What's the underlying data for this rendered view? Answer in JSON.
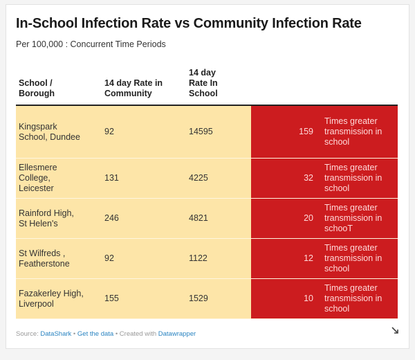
{
  "chart_data": {
    "type": "table",
    "title": "In-School Infection Rate vs Community Infection Rate",
    "subtitle": "Per 100,000 : Concurrent Time Periods",
    "columns": [
      "School /\nBorough",
      "14 day Rate in\nCommunity",
      "14 day\nRate In\nSchool",
      "",
      ""
    ],
    "rows": [
      {
        "school": "Kingspark\nSchool, Dundee",
        "community": 92,
        "school_rate": 14595,
        "ratio": 159,
        "note": "Times greater\ntransmission in\nschool"
      },
      {
        "school": "Ellesmere\nCollege,\nLeicester",
        "community": 131,
        "school_rate": 4225,
        "ratio": 32,
        "note": "Times greater\ntransmission in\nschool"
      },
      {
        "school": "Rainford High,\nSt Helen's",
        "community": 246,
        "school_rate": 4821,
        "ratio": 20,
        "note": "Times greater\ntransmission in\nschooT"
      },
      {
        "school": "St Wilfreds ,\nFeatherstone",
        "community": 92,
        "school_rate": 1122,
        "ratio": 12,
        "note": "Times greater\ntransmission in\nschool"
      },
      {
        "school": "Fazakerley High,\nLiverpool",
        "community": 155,
        "school_rate": 1529,
        "ratio": 10,
        "note": "Times greater\ntransmission in\nschool"
      }
    ]
  },
  "footer": {
    "source_label": "Source: ",
    "source_link": "DataShark",
    "sep1": " • ",
    "get_data": "Get the data",
    "sep2": " • Created with ",
    "created_with": "Datawrapper"
  },
  "colors": {
    "highlight_yellow": "#fde5a8",
    "highlight_red": "#cc1c1f"
  },
  "icons": {
    "resize": "resize-arrow-icon"
  }
}
